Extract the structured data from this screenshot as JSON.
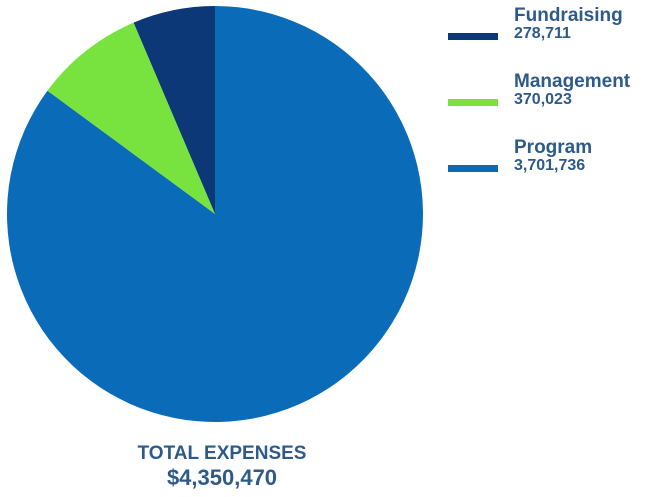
{
  "chart_data": {
    "type": "pie",
    "slices": [
      {
        "label": "Fundraising",
        "value": 278711,
        "display": "278,711",
        "color": "#0d3877"
      },
      {
        "label": "Management",
        "value": 370023,
        "display": "370,023",
        "color": "#78e23f"
      },
      {
        "label": "Program",
        "value": 3701736,
        "display": "3,701,736",
        "color": "#0a6bb8"
      }
    ],
    "legend_position": "right",
    "total_label": "TOTAL EXPENSES",
    "total_value": "$4,350,470"
  }
}
